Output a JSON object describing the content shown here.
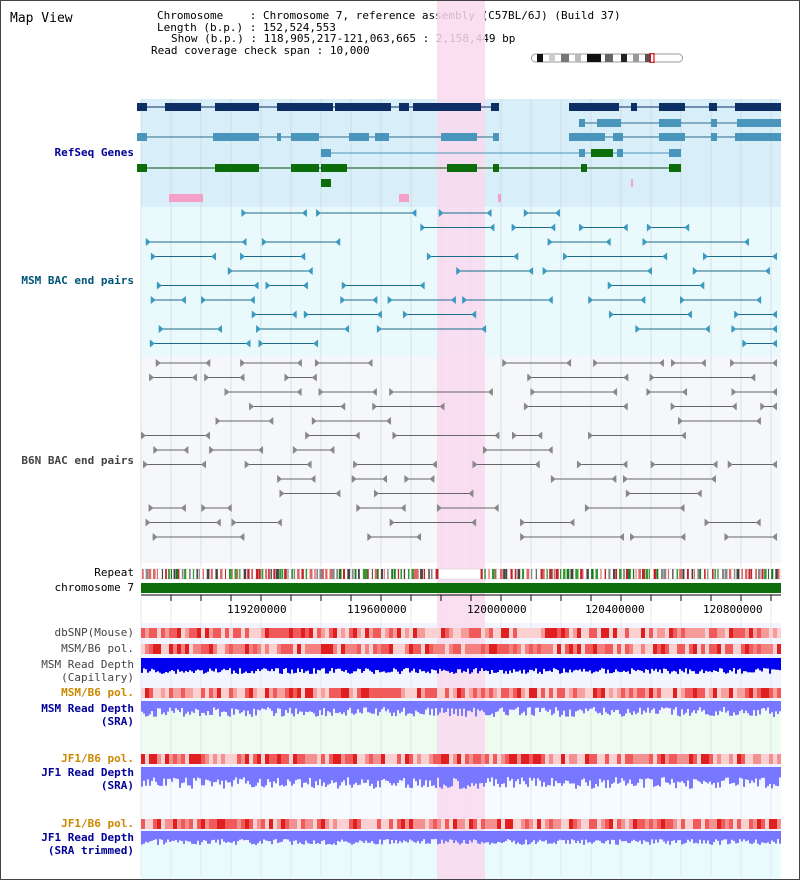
{
  "view_title": "Map View",
  "info": {
    "chromosome_key": "Chromosome",
    "chromosome_val": "Chromosome 7, reference assembly (C57BL/6J) (Build 37)",
    "length_key": "Length (b.p.)",
    "length_val": "152,524,553",
    "show_key": "Show (b.p.)",
    "show_val": "118,905,217-121,063,665 : 2,158,449 bp",
    "coverage_key": "Read coverage check span",
    "coverage_val": "10,000"
  },
  "tracks": {
    "refseq": "RefSeq Genes",
    "msm_bac": "MSM BAC end pairs",
    "b6n_bac": "B6N BAC end pairs",
    "repeat": "Repeat",
    "chromosome": "chromosome 7",
    "dbsnp": "dbSNP(Mouse)",
    "msm_b6_pol_1": "MSM/B6 pol.",
    "msm_read_depth_cap_1": "MSM Read Depth",
    "msm_read_depth_cap_2": "(Capillary)",
    "msm_b6_pol_2": "MSM/B6 pol.",
    "msm_read_depth_sra_1": "MSM Read Depth",
    "msm_read_depth_sra_2": "(SRA)",
    "jf1_b6_pol_1": "JF1/B6 pol.",
    "jf1_read_depth_sra_1": "JF1 Read Depth",
    "jf1_read_depth_sra_2": "(SRA)",
    "jf1_b6_pol_2": "JF1/B6 pol.",
    "jf1_read_depth_trim_1": "JF1 Read Depth",
    "jf1_read_depth_trim_2": "(SRA trimmed)"
  },
  "axis_ticks": [
    "119200000",
    "119600000",
    "120000000",
    "120400000",
    "120800000"
  ],
  "colors": {
    "gene_dark": "#0d2f66",
    "gene_mid": "#4a95bb",
    "gene_green": "#0b6e0b",
    "highlight": "#f9d9ef",
    "label_blue": "#000099",
    "label_teal": "#005577",
    "label_gray": "#444444",
    "label_orange": "#cc8800",
    "depth_dark": "#0000ee",
    "depth_light": "#7777ff"
  }
}
